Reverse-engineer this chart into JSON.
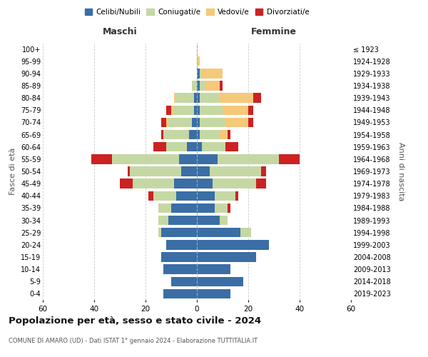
{
  "age_groups": [
    "0-4",
    "5-9",
    "10-14",
    "15-19",
    "20-24",
    "25-29",
    "30-34",
    "35-39",
    "40-44",
    "45-49",
    "50-54",
    "55-59",
    "60-64",
    "65-69",
    "70-74",
    "75-79",
    "80-84",
    "85-89",
    "90-94",
    "95-99",
    "100+"
  ],
  "birth_years": [
    "2019-2023",
    "2014-2018",
    "2009-2013",
    "2004-2008",
    "1999-2003",
    "1994-1998",
    "1989-1993",
    "1984-1988",
    "1979-1983",
    "1974-1978",
    "1969-1973",
    "1964-1968",
    "1959-1963",
    "1954-1958",
    "1949-1953",
    "1944-1948",
    "1939-1943",
    "1934-1938",
    "1929-1933",
    "1924-1928",
    "≤ 1923"
  ],
  "colors": {
    "celibi": "#3a6ea5",
    "coniugati": "#c5d8a4",
    "vedovi": "#f5c97a",
    "divorziati": "#cc2222"
  },
  "males": {
    "celibi": [
      13,
      10,
      13,
      14,
      12,
      14,
      11,
      10,
      8,
      9,
      6,
      7,
      4,
      3,
      2,
      1,
      1,
      0,
      0,
      0,
      0
    ],
    "coniugati": [
      0,
      0,
      0,
      0,
      0,
      1,
      4,
      5,
      9,
      16,
      20,
      26,
      8,
      10,
      9,
      8,
      7,
      2,
      0,
      0,
      0
    ],
    "vedovi": [
      0,
      0,
      0,
      0,
      0,
      0,
      0,
      0,
      0,
      0,
      0,
      0,
      0,
      0,
      1,
      1,
      1,
      0,
      0,
      0,
      0
    ],
    "divorziati": [
      0,
      0,
      0,
      0,
      0,
      0,
      0,
      0,
      2,
      5,
      1,
      8,
      5,
      1,
      2,
      2,
      0,
      0,
      0,
      0,
      0
    ]
  },
  "females": {
    "celibi": [
      13,
      18,
      13,
      23,
      28,
      17,
      9,
      7,
      7,
      6,
      5,
      8,
      2,
      1,
      1,
      1,
      1,
      1,
      1,
      0,
      0
    ],
    "coniugati": [
      0,
      0,
      0,
      0,
      0,
      4,
      3,
      5,
      8,
      17,
      20,
      24,
      9,
      8,
      10,
      9,
      8,
      2,
      1,
      0,
      0
    ],
    "vedovi": [
      0,
      0,
      0,
      0,
      0,
      0,
      0,
      0,
      0,
      0,
      0,
      0,
      0,
      3,
      9,
      10,
      13,
      6,
      8,
      1,
      0
    ],
    "divorziati": [
      0,
      0,
      0,
      0,
      0,
      0,
      0,
      1,
      1,
      4,
      2,
      8,
      5,
      1,
      2,
      2,
      3,
      1,
      0,
      0,
      0
    ]
  },
  "title": "Popolazione per età, sesso e stato civile - 2024",
  "subtitle": "COMUNE DI AMARO (UD) - Dati ISTAT 1° gennaio 2024 - Elaborazione TUTTITALIA.IT",
  "xlabel_left": "Maschi",
  "xlabel_right": "Femmine",
  "ylabel_left": "Fasce di età",
  "ylabel_right": "Anni di nascita",
  "xlim": 60,
  "legend_labels": [
    "Celibi/Nubili",
    "Coniugati/e",
    "Vedovi/e",
    "Divorziati/e"
  ],
  "background_color": "#ffffff",
  "grid_color": "#cccccc"
}
